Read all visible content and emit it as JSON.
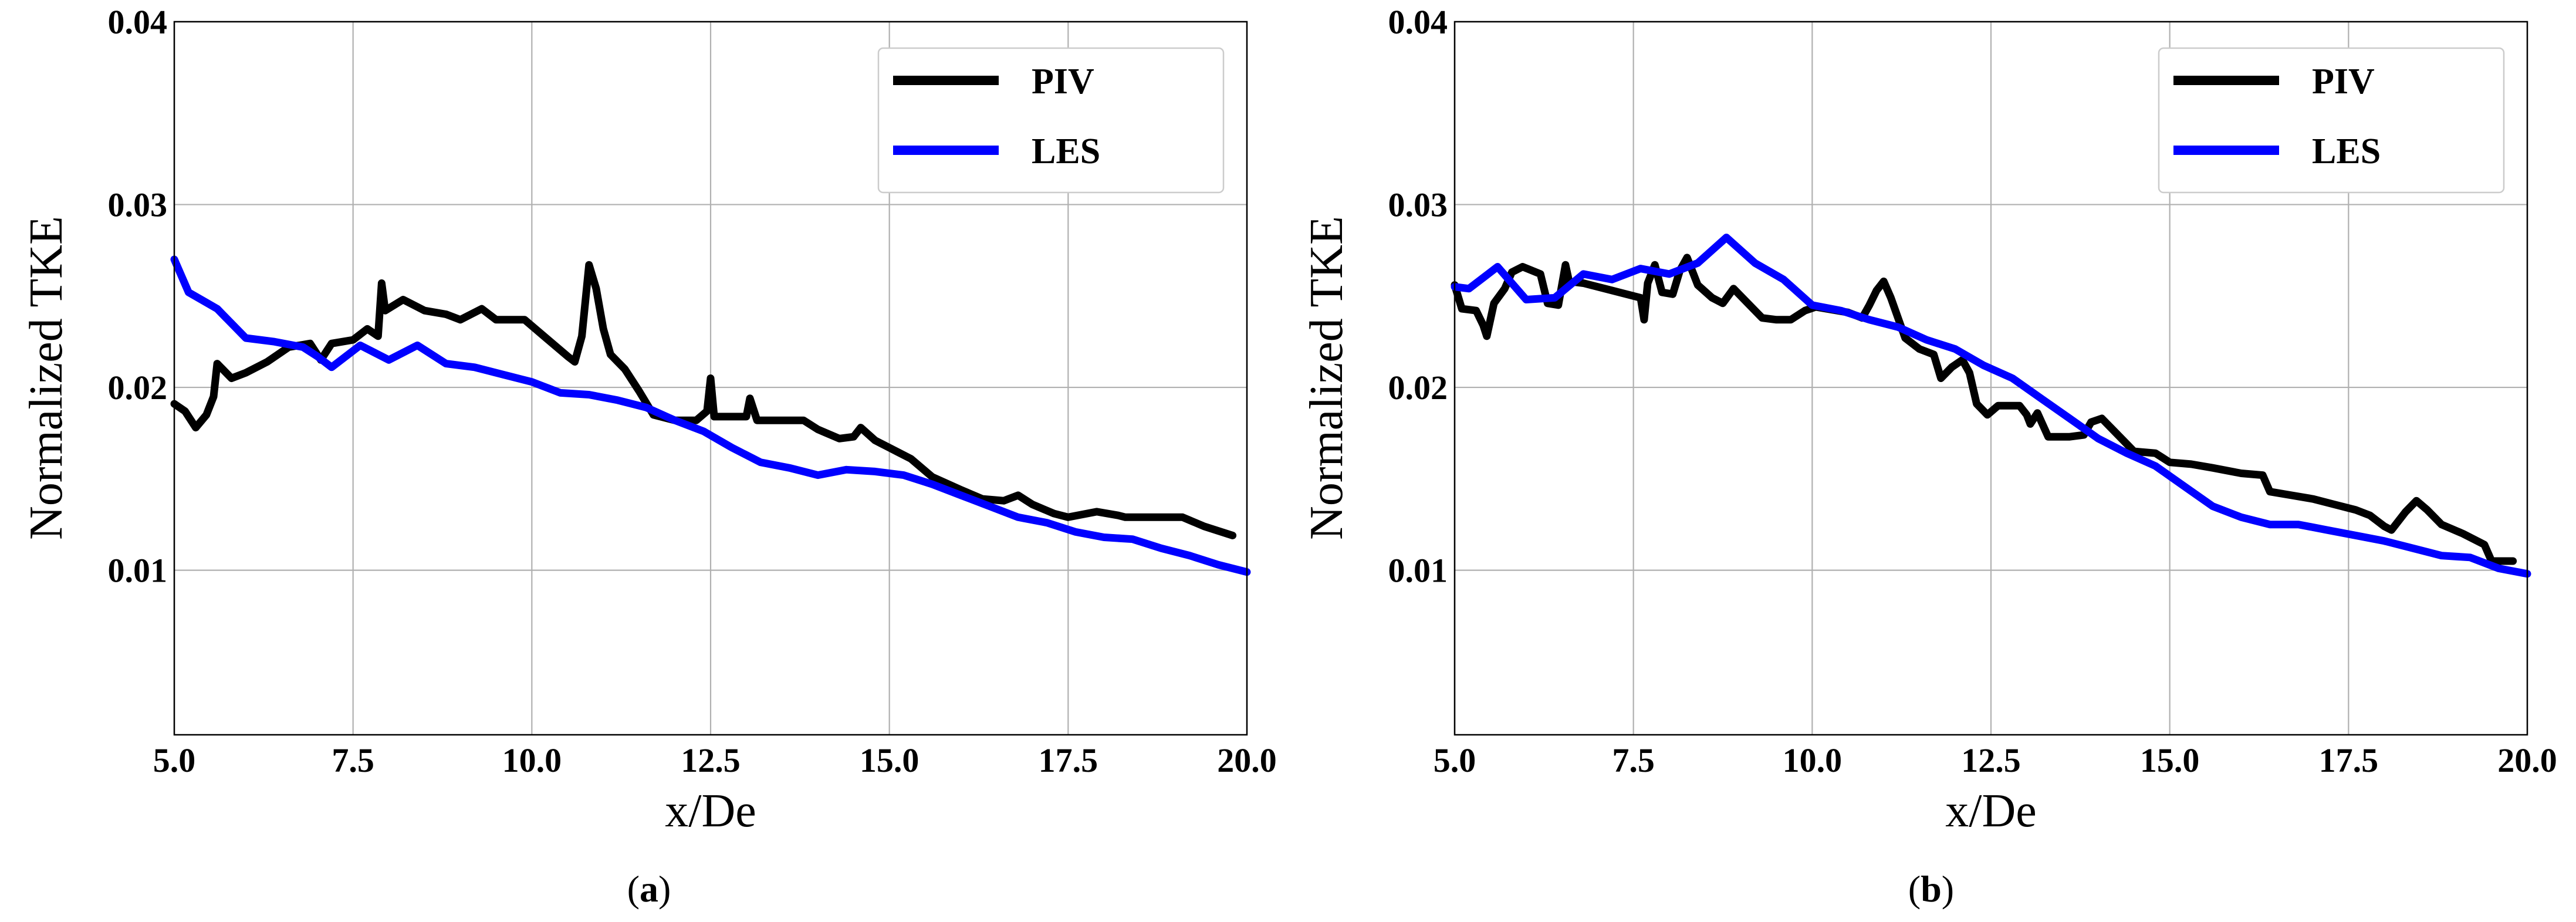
{
  "chart_data": [
    {
      "type": "line",
      "panel_label": "a",
      "title": "",
      "xlabel": "x/De",
      "ylabel": "Normalized TKE",
      "xlim": [
        5.0,
        20.0
      ],
      "ylim": [
        0.001,
        0.04
      ],
      "xticks": [
        "5.0",
        "7.5",
        "10.0",
        "12.5",
        "15.0",
        "17.5",
        "20.0"
      ],
      "yticks": [
        "0.01",
        "0.02",
        "0.03",
        "0.04"
      ],
      "grid": true,
      "legend_position": "top-right",
      "series": [
        {
          "name": "PIV",
          "color": "#000000",
          "points": [
            [
              5.0,
              0.0191
            ],
            [
              5.15,
              0.0187
            ],
            [
              5.3,
              0.0178
            ],
            [
              5.45,
              0.0185
            ],
            [
              5.55,
              0.0195
            ],
            [
              5.6,
              0.0213
            ],
            [
              5.8,
              0.0205
            ],
            [
              6.0,
              0.0208
            ],
            [
              6.3,
              0.0214
            ],
            [
              6.6,
              0.0222
            ],
            [
              6.9,
              0.0224
            ],
            [
              7.05,
              0.0215
            ],
            [
              7.2,
              0.0224
            ],
            [
              7.5,
              0.0226
            ],
            [
              7.7,
              0.0232
            ],
            [
              7.85,
              0.0228
            ],
            [
              7.9,
              0.0257
            ],
            [
              7.95,
              0.0242
            ],
            [
              8.2,
              0.0248
            ],
            [
              8.5,
              0.0242
            ],
            [
              8.8,
              0.024
            ],
            [
              9.0,
              0.0237
            ],
            [
              9.3,
              0.0243
            ],
            [
              9.5,
              0.0237
            ],
            [
              9.9,
              0.0237
            ],
            [
              10.2,
              0.0227
            ],
            [
              10.5,
              0.0217
            ],
            [
              10.6,
              0.0214
            ],
            [
              10.7,
              0.0228
            ],
            [
              10.8,
              0.0267
            ],
            [
              10.9,
              0.0254
            ],
            [
              11.0,
              0.0232
            ],
            [
              11.1,
              0.0218
            ],
            [
              11.3,
              0.021
            ],
            [
              11.5,
              0.0198
            ],
            [
              11.7,
              0.0185
            ],
            [
              12.0,
              0.0182
            ],
            [
              12.3,
              0.0182
            ],
            [
              12.45,
              0.0187
            ],
            [
              12.5,
              0.0205
            ],
            [
              12.55,
              0.0184
            ],
            [
              12.8,
              0.0184
            ],
            [
              13.0,
              0.0184
            ],
            [
              13.05,
              0.0194
            ],
            [
              13.15,
              0.0182
            ],
            [
              13.4,
              0.0182
            ],
            [
              13.8,
              0.0182
            ],
            [
              14.0,
              0.0177
            ],
            [
              14.3,
              0.0172
            ],
            [
              14.5,
              0.0173
            ],
            [
              14.6,
              0.0178
            ],
            [
              14.8,
              0.0171
            ],
            [
              15.0,
              0.0167
            ],
            [
              15.3,
              0.0161
            ],
            [
              15.6,
              0.0151
            ],
            [
              16.0,
              0.0144
            ],
            [
              16.3,
              0.0139
            ],
            [
              16.6,
              0.0138
            ],
            [
              16.8,
              0.0141
            ],
            [
              17.0,
              0.0136
            ],
            [
              17.3,
              0.0131
            ],
            [
              17.5,
              0.0129
            ],
            [
              17.9,
              0.0132
            ],
            [
              18.2,
              0.013
            ],
            [
              18.3,
              0.0129
            ],
            [
              18.6,
              0.0129
            ],
            [
              18.9,
              0.0129
            ],
            [
              19.1,
              0.0129
            ],
            [
              19.4,
              0.0124
            ],
            [
              19.8,
              0.0119
            ]
          ]
        },
        {
          "name": "LES",
          "color": "#0000ff",
          "points": [
            [
              5.0,
              0.027
            ],
            [
              5.2,
              0.0252
            ],
            [
              5.6,
              0.0243
            ],
            [
              6.0,
              0.0227
            ],
            [
              6.4,
              0.0225
            ],
            [
              6.8,
              0.0222
            ],
            [
              7.0,
              0.0217
            ],
            [
              7.2,
              0.0211
            ],
            [
              7.6,
              0.0223
            ],
            [
              8.0,
              0.0215
            ],
            [
              8.4,
              0.0223
            ],
            [
              8.8,
              0.0213
            ],
            [
              9.2,
              0.0211
            ],
            [
              9.6,
              0.0207
            ],
            [
              10.0,
              0.0203
            ],
            [
              10.4,
              0.0197
            ],
            [
              10.8,
              0.0196
            ],
            [
              11.2,
              0.0193
            ],
            [
              11.6,
              0.0189
            ],
            [
              12.0,
              0.0182
            ],
            [
              12.4,
              0.0176
            ],
            [
              12.8,
              0.0167
            ],
            [
              13.2,
              0.0159
            ],
            [
              13.6,
              0.0156
            ],
            [
              14.0,
              0.0152
            ],
            [
              14.4,
              0.0155
            ],
            [
              14.8,
              0.0154
            ],
            [
              15.2,
              0.0152
            ],
            [
              15.6,
              0.0147
            ],
            [
              16.0,
              0.0141
            ],
            [
              16.4,
              0.0135
            ],
            [
              16.8,
              0.0129
            ],
            [
              17.2,
              0.0126
            ],
            [
              17.6,
              0.0121
            ],
            [
              18.0,
              0.0118
            ],
            [
              18.4,
              0.0117
            ],
            [
              18.8,
              0.0112
            ],
            [
              19.2,
              0.0108
            ],
            [
              19.6,
              0.0103
            ],
            [
              20.0,
              0.0099
            ]
          ]
        }
      ]
    },
    {
      "type": "line",
      "panel_label": "b",
      "title": "",
      "xlabel": "x/De",
      "ylabel": "Normalized TKE",
      "xlim": [
        5.0,
        20.0
      ],
      "ylim": [
        0.001,
        0.04
      ],
      "xticks": [
        "5.0",
        "7.5",
        "10.0",
        "12.5",
        "15.0",
        "17.5",
        "20.0"
      ],
      "yticks": [
        "0.01",
        "0.02",
        "0.03",
        "0.04"
      ],
      "grid": true,
      "legend_position": "top-right",
      "series": [
        {
          "name": "PIV",
          "color": "#000000",
          "points": [
            [
              5.0,
              0.0256
            ],
            [
              5.1,
              0.0243
            ],
            [
              5.3,
              0.0242
            ],
            [
              5.4,
              0.0234
            ],
            [
              5.45,
              0.0228
            ],
            [
              5.55,
              0.0246
            ],
            [
              5.7,
              0.0254
            ],
            [
              5.8,
              0.0263
            ],
            [
              5.95,
              0.0266
            ],
            [
              6.2,
              0.0262
            ],
            [
              6.3,
              0.0246
            ],
            [
              6.45,
              0.0245
            ],
            [
              6.55,
              0.0267
            ],
            [
              6.6,
              0.0258
            ],
            [
              6.8,
              0.0257
            ],
            [
              7.1,
              0.0254
            ],
            [
              7.4,
              0.0251
            ],
            [
              7.6,
              0.0249
            ],
            [
              7.65,
              0.0237
            ],
            [
              7.7,
              0.0257
            ],
            [
              7.8,
              0.0267
            ],
            [
              7.9,
              0.0252
            ],
            [
              8.05,
              0.0251
            ],
            [
              8.15,
              0.0264
            ],
            [
              8.25,
              0.0271
            ],
            [
              8.4,
              0.0256
            ],
            [
              8.6,
              0.0249
            ],
            [
              8.75,
              0.0246
            ],
            [
              8.9,
              0.0254
            ],
            [
              9.1,
              0.0246
            ],
            [
              9.3,
              0.0238
            ],
            [
              9.5,
              0.0237
            ],
            [
              9.7,
              0.0237
            ],
            [
              9.9,
              0.0242
            ],
            [
              10.05,
              0.0244
            ],
            [
              10.5,
              0.0241
            ],
            [
              10.7,
              0.0238
            ],
            [
              10.8,
              0.0245
            ],
            [
              10.9,
              0.0253
            ],
            [
              11.0,
              0.0258
            ],
            [
              11.1,
              0.0249
            ],
            [
              11.3,
              0.0227
            ],
            [
              11.5,
              0.0221
            ],
            [
              11.7,
              0.0218
            ],
            [
              11.8,
              0.0205
            ],
            [
              11.95,
              0.0211
            ],
            [
              12.1,
              0.0215
            ],
            [
              12.2,
              0.0208
            ],
            [
              12.3,
              0.0191
            ],
            [
              12.45,
              0.0185
            ],
            [
              12.6,
              0.019
            ],
            [
              12.9,
              0.019
            ],
            [
              13.0,
              0.0185
            ],
            [
              13.05,
              0.018
            ],
            [
              13.15,
              0.0186
            ],
            [
              13.3,
              0.0173
            ],
            [
              13.6,
              0.0173
            ],
            [
              13.8,
              0.0174
            ],
            [
              13.9,
              0.0181
            ],
            [
              14.05,
              0.0183
            ],
            [
              14.2,
              0.0177
            ],
            [
              14.5,
              0.0165
            ],
            [
              14.8,
              0.0164
            ],
            [
              15.0,
              0.0159
            ],
            [
              15.3,
              0.0158
            ],
            [
              15.6,
              0.0156
            ],
            [
              16.0,
              0.0153
            ],
            [
              16.3,
              0.0152
            ],
            [
              16.4,
              0.0143
            ],
            [
              16.7,
              0.0141
            ],
            [
              17.0,
              0.0139
            ],
            [
              17.3,
              0.0136
            ],
            [
              17.6,
              0.0133
            ],
            [
              17.8,
              0.013
            ],
            [
              17.9,
              0.0127
            ],
            [
              18.0,
              0.0124
            ],
            [
              18.1,
              0.0122
            ],
            [
              18.3,
              0.0132
            ],
            [
              18.45,
              0.0138
            ],
            [
              18.6,
              0.0133
            ],
            [
              18.8,
              0.0125
            ],
            [
              19.1,
              0.012
            ],
            [
              19.4,
              0.0114
            ],
            [
              19.5,
              0.0105
            ],
            [
              19.8,
              0.0105
            ]
          ]
        },
        {
          "name": "LES",
          "color": "#0000ff",
          "points": [
            [
              5.0,
              0.0255
            ],
            [
              5.2,
              0.0254
            ],
            [
              5.6,
              0.0266
            ],
            [
              6.0,
              0.0248
            ],
            [
              6.4,
              0.0249
            ],
            [
              6.8,
              0.0262
            ],
            [
              7.2,
              0.0259
            ],
            [
              7.6,
              0.0265
            ],
            [
              8.0,
              0.0262
            ],
            [
              8.4,
              0.0268
            ],
            [
              8.8,
              0.0282
            ],
            [
              9.2,
              0.0268
            ],
            [
              9.6,
              0.0259
            ],
            [
              10.0,
              0.0245
            ],
            [
              10.4,
              0.0242
            ],
            [
              10.8,
              0.0237
            ],
            [
              11.2,
              0.0233
            ],
            [
              11.6,
              0.0226
            ],
            [
              12.0,
              0.0221
            ],
            [
              12.4,
              0.0212
            ],
            [
              12.8,
              0.0205
            ],
            [
              13.2,
              0.0194
            ],
            [
              13.6,
              0.0183
            ],
            [
              14.0,
              0.0172
            ],
            [
              14.4,
              0.0164
            ],
            [
              14.8,
              0.0157
            ],
            [
              15.2,
              0.0146
            ],
            [
              15.6,
              0.0135
            ],
            [
              16.0,
              0.0129
            ],
            [
              16.4,
              0.0125
            ],
            [
              16.8,
              0.0125
            ],
            [
              17.2,
              0.0122
            ],
            [
              17.6,
              0.0119
            ],
            [
              18.0,
              0.0116
            ],
            [
              18.4,
              0.0112
            ],
            [
              18.8,
              0.0108
            ],
            [
              19.2,
              0.0107
            ],
            [
              19.6,
              0.0101
            ],
            [
              20.0,
              0.0098
            ]
          ]
        }
      ]
    }
  ]
}
